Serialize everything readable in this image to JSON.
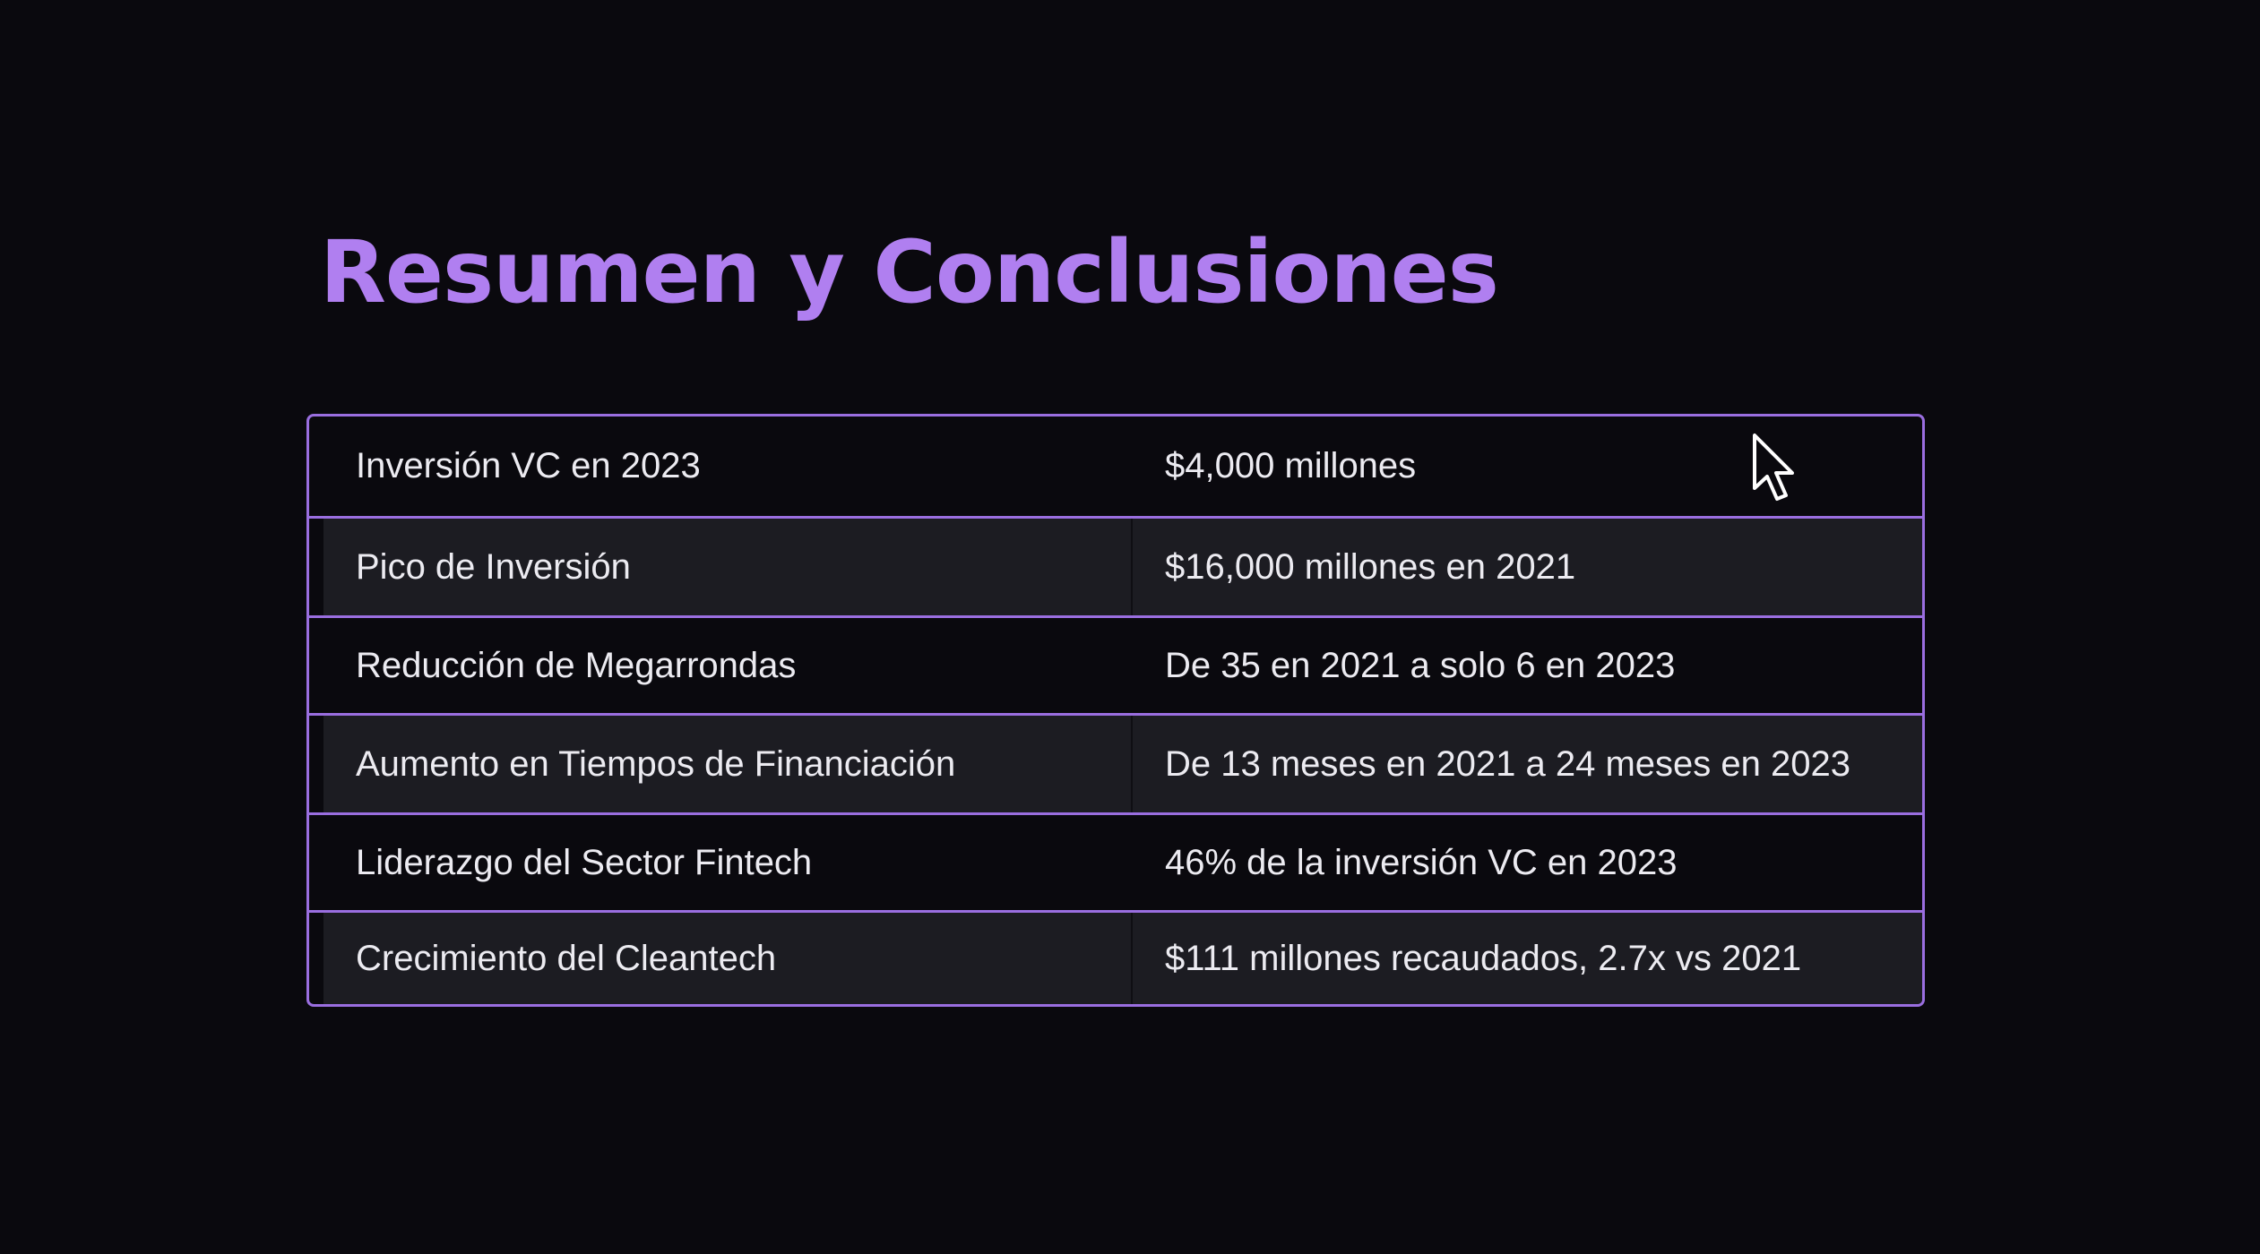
{
  "slide": {
    "title": "Resumen y Conclusiones"
  },
  "table": {
    "rows": [
      {
        "label": "Inversión VC en 2023",
        "value": "$4,000 millones"
      },
      {
        "label": "Pico de Inversión",
        "value": "$16,000 millones en 2021"
      },
      {
        "label": "Reducción de Megarrondas",
        "value": "De 35 en 2021 a solo 6 en 2023"
      },
      {
        "label": "Aumento en Tiempos de Financiación",
        "value": "De 13 meses en 2021 a 24 meses en 2023"
      },
      {
        "label": "Liderazgo del Sector Fintech",
        "value": "46% de la inversión VC en 2023"
      },
      {
        "label": "Crecimiento del Cleantech",
        "value": "$111 millones recaudados, 2.7x vs 2021"
      }
    ]
  },
  "colors": {
    "background": "#0a090e",
    "accent": "#b07ff0",
    "border": "#9a6ee0",
    "alt_row": "#1c1c22",
    "text": "#ecebf1"
  },
  "icons": {
    "cursor": "mouse-pointer-icon"
  }
}
